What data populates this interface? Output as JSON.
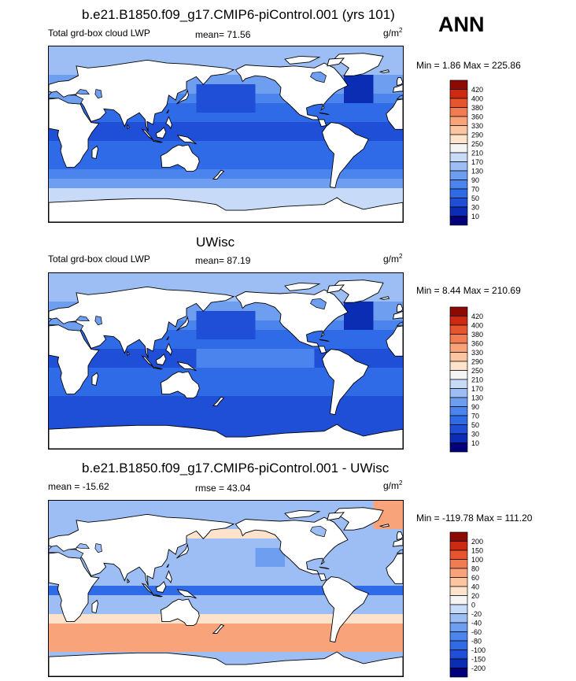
{
  "header": {
    "season": "ANN"
  },
  "panels": [
    {
      "title": "b.e21.B1850.f09_g17.CMIP6-piControl.001 (yrs 101)",
      "left_label": "Total grd-box cloud LWP",
      "stat_label": "mean=  71.56",
      "units_base": "g/m",
      "units_exp": "2",
      "minmax": "Min =   1.86 Max = 225.86",
      "palette": "abs"
    },
    {
      "title": "UWisc",
      "left_label": "Total grd-box cloud LWP",
      "stat_label": "mean=  87.19",
      "units_base": "g/m",
      "units_exp": "2",
      "minmax": "Min =   8.44 Max = 210.69",
      "palette": "abs"
    },
    {
      "title": "b.e21.B1850.f09_g17.CMIP6-piControl.001 - UWisc",
      "left_label": "mean = -15.62",
      "stat_label": "rmse =  43.04",
      "units_base": "g/m",
      "units_exp": "2",
      "minmax": "Min = -119.78 Max = 111.20",
      "palette": "diff"
    }
  ],
  "chart_data": [
    {
      "type": "heatmap",
      "title": "b.e21.B1850.f09_g17.CMIP6-piControl.001 (yrs 101)",
      "variable": "Total grd-box cloud LWP",
      "units": "g/m2",
      "mean": 71.56,
      "min": 1.86,
      "max": 225.86,
      "colorbar_levels": [
        10,
        30,
        50,
        70,
        90,
        130,
        170,
        210,
        250,
        290,
        330,
        360,
        380,
        400,
        420
      ],
      "colorbar_colors": [
        "#00007a",
        "#0a2db4",
        "#1e4fd6",
        "#2f6be6",
        "#4a84ec",
        "#6e9ef0",
        "#9dbef5",
        "#c7daf8",
        "#f4f4f4",
        "#fde3cc",
        "#fcc5a2",
        "#f9a37a",
        "#f27c52",
        "#e6552e",
        "#cc2a12",
        "#8c0a04"
      ]
    },
    {
      "type": "heatmap",
      "title": "UWisc",
      "variable": "Total grd-box cloud LWP",
      "units": "g/m2",
      "mean": 87.19,
      "min": 8.44,
      "max": 210.69,
      "colorbar_levels": [
        10,
        30,
        50,
        70,
        90,
        130,
        170,
        210,
        250,
        290,
        330,
        360,
        380,
        400,
        420
      ],
      "colorbar_colors": [
        "#00007a",
        "#0a2db4",
        "#1e4fd6",
        "#2f6be6",
        "#4a84ec",
        "#6e9ef0",
        "#9dbef5",
        "#c7daf8",
        "#f4f4f4",
        "#fde3cc",
        "#fcc5a2",
        "#f9a37a",
        "#f27c52",
        "#e6552e",
        "#cc2a12",
        "#8c0a04"
      ]
    },
    {
      "type": "heatmap",
      "title": "b.e21.B1850.f09_g17.CMIP6-piControl.001 - UWisc",
      "units": "g/m2",
      "mean": -15.62,
      "rmse": 43.04,
      "min": -119.78,
      "max": 111.2,
      "colorbar_levels": [
        -200,
        -150,
        -100,
        -80,
        -60,
        -40,
        -20,
        0,
        20,
        40,
        60,
        80,
        100,
        150,
        200
      ],
      "colorbar_colors": [
        "#00007a",
        "#0a2db4",
        "#1e4fd6",
        "#2f6be6",
        "#4a84ec",
        "#6e9ef0",
        "#9dbef5",
        "#c7daf8",
        "#f4f4f4",
        "#fde3cc",
        "#fcc5a2",
        "#f9a37a",
        "#f27c52",
        "#e6552e",
        "#cc2a12",
        "#8c0a04"
      ]
    }
  ]
}
